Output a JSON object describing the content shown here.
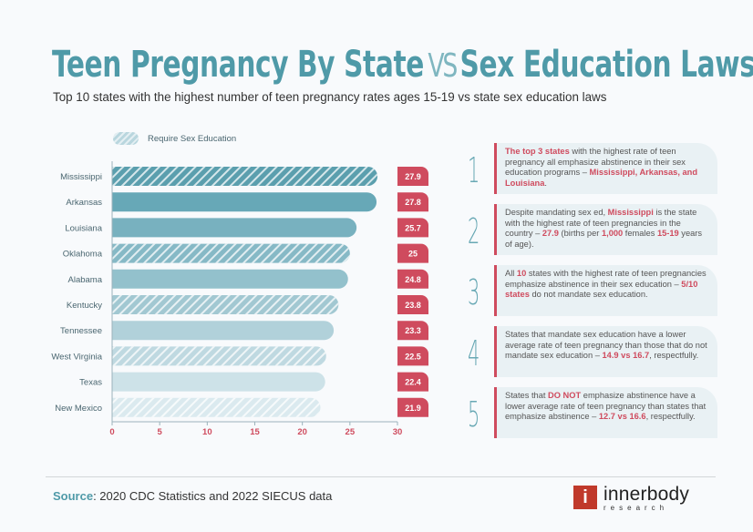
{
  "header": {
    "title_left": "Teen Pregnancy By State",
    "title_vs": "VS",
    "title_right": "Sex Education Laws",
    "subtitle": "Top 10 states with the highest number of teen pregnancy rates ages 15-19 vs state sex education laws"
  },
  "legend": {
    "label": "Require Sex Education"
  },
  "colors": {
    "teal": "#4f9aa8",
    "accent_red": "#cf4b5e",
    "panel": "#e9f1f4"
  },
  "chart_data": {
    "type": "bar",
    "orientation": "horizontal",
    "categories": [
      "Mississippi",
      "Arkansas",
      "Louisiana",
      "Oklahoma",
      "Alabama",
      "Kentucky",
      "Tennessee",
      "West Virginia",
      "Texas",
      "New Mexico"
    ],
    "values": [
      27.9,
      27.8,
      25.7,
      25,
      24.8,
      23.8,
      23.3,
      22.5,
      22.4,
      21.9
    ],
    "value_labels": [
      "27.9",
      "27.8",
      "25.7",
      "25",
      "24.8",
      "23.8",
      "23.3",
      "22.5",
      "22.4",
      "21.9"
    ],
    "require_sex_education": [
      true,
      false,
      false,
      true,
      false,
      true,
      false,
      true,
      false,
      true
    ],
    "xlim": [
      0,
      30
    ],
    "xticks": [
      "0",
      "5",
      "10",
      "15",
      "20",
      "25",
      "30"
    ],
    "legend_placement": "top-left",
    "grid": false
  },
  "facts": [
    {
      "number": "1",
      "segments": [
        {
          "text": "The top 3 states",
          "hl": true
        },
        {
          "text": " with the highest rate of teen pregnancy all emphasize abstinence in their sex education programs – ",
          "hl": false
        },
        {
          "text": "Mississippi, Arkansas, and Louisiana",
          "hl": true
        },
        {
          "text": ".",
          "hl": false
        }
      ]
    },
    {
      "number": "2",
      "segments": [
        {
          "text": "Despite mandating sex ed, ",
          "hl": false
        },
        {
          "text": "Mississippi",
          "hl": true
        },
        {
          "text": " is the state with the highest rate of teen pregnancies in the country – ",
          "hl": false
        },
        {
          "text": "27.9",
          "hl": true
        },
        {
          "text": " (births per ",
          "hl": false
        },
        {
          "text": "1,000",
          "hl": true
        },
        {
          "text": " females ",
          "hl": false
        },
        {
          "text": "15-19",
          "hl": true
        },
        {
          "text": " years of age).",
          "hl": false
        }
      ]
    },
    {
      "number": "3",
      "segments": [
        {
          "text": "All ",
          "hl": false
        },
        {
          "text": "10",
          "hl": true
        },
        {
          "text": " states with the highest rate of teen pregnancies emphasize abstinence in their sex education – ",
          "hl": false
        },
        {
          "text": "5/10 states",
          "hl": true
        },
        {
          "text": " do not mandate sex education.",
          "hl": false
        }
      ]
    },
    {
      "number": "4",
      "segments": [
        {
          "text": "States that mandate sex education have a lower average rate of teen pregnancy than those that do not mandate sex education – ",
          "hl": false
        },
        {
          "text": "14.9 vs 16.7",
          "hl": true
        },
        {
          "text": ", respectfully.",
          "hl": false
        }
      ]
    },
    {
      "number": "5",
      "segments": [
        {
          "text": "States that ",
          "hl": false
        },
        {
          "text": "DO NOT",
          "hl": true
        },
        {
          "text": " emphasize abstinence have a lower average rate of teen pregnancy than states that emphasize abstinence – ",
          "hl": false
        },
        {
          "text": "12.7 vs 16.6",
          "hl": true
        },
        {
          "text": ", respectfully.",
          "hl": false
        }
      ]
    }
  ],
  "footer": {
    "source_label": "Source",
    "source_text": ": 2020 CDC Statistics and 2022 SIECUS data",
    "logo_mark": "i",
    "logo_name": "innerbody",
    "logo_sub": "research"
  }
}
